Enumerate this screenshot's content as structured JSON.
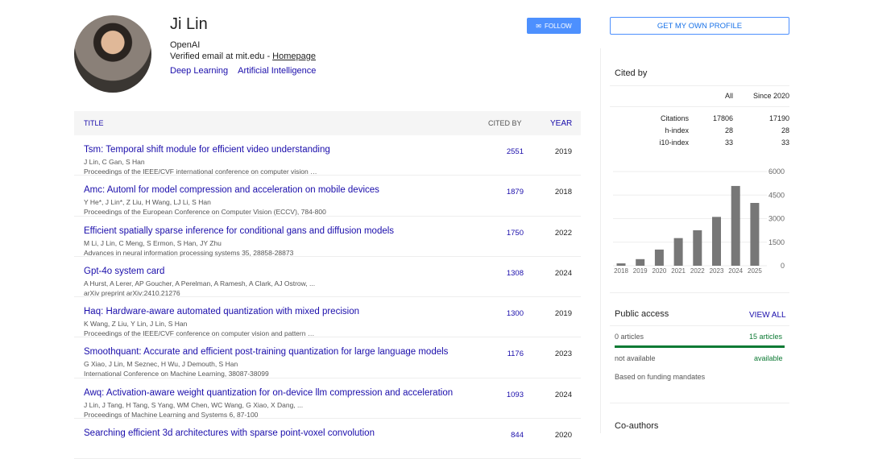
{
  "profile": {
    "name": "Ji Lin",
    "affiliation": "OpenAI",
    "email": "Verified email at mit.edu - ",
    "homepage": "Homepage",
    "interests": [
      "Deep Learning",
      "Artificial Intelligence"
    ],
    "follow": "FOLLOW",
    "get_profile": "GET MY OWN PROFILE"
  },
  "table": {
    "headers": {
      "title": "TITLE",
      "cited_by": "CITED BY",
      "year": "YEAR"
    },
    "rows": [
      {
        "title": "Tsm: Temporal shift module for efficient video understanding",
        "authors": "J Lin, C Gan, S Han",
        "venue": "Proceedings of the IEEE/CVF international conference on computer vision …",
        "cited": "2551",
        "year": "2019"
      },
      {
        "title": "Amc: Automl for model compression and acceleration on mobile devices",
        "authors": "Y He*, J Lin*, Z Liu, H Wang, LJ Li, S Han",
        "venue": "Proceedings of the European Conference on Computer Vision (ECCV), 784-800",
        "cited": "1879",
        "year": "2018"
      },
      {
        "title": "Efficient spatially sparse inference for conditional gans and diffusion models",
        "authors": "M Li, J Lin, C Meng, S Ermon, S Han, JY Zhu",
        "venue": "Advances in neural information processing systems 35, 28858-28873",
        "cited": "1750",
        "year": "2022"
      },
      {
        "title": "Gpt-4o system card",
        "authors": "A Hurst, A Lerer, AP Goucher, A Perelman, A Ramesh, A Clark, AJ Ostrow, ...",
        "venue": "arXiv preprint arXiv:2410.21276",
        "cited": "1308",
        "year": "2024"
      },
      {
        "title": "Haq: Hardware-aware automated quantization with mixed precision",
        "authors": "K Wang, Z Liu, Y Lin, J Lin, S Han",
        "venue": "Proceedings of the IEEE/CVF conference on computer vision and pattern …",
        "cited": "1300",
        "year": "2019"
      },
      {
        "title": "Smoothquant: Accurate and efficient post-training quantization for large language models",
        "authors": "G Xiao, J Lin, M Seznec, H Wu, J Demouth, S Han",
        "venue": "International Conference on Machine Learning, 38087-38099",
        "cited": "1176",
        "year": "2023"
      },
      {
        "title": "Awq: Activation-aware weight quantization for on-device llm compression and acceleration",
        "authors": "J Lin, J Tang, H Tang, S Yang, WM Chen, WC Wang, G Xiao, X Dang, ...",
        "venue": "Proceedings of Machine Learning and Systems 6, 87-100",
        "cited": "1093",
        "year": "2024"
      },
      {
        "title": "Searching efficient 3d architectures with sparse point-voxel convolution",
        "authors": "",
        "venue": "",
        "cited": "844",
        "year": "2020"
      }
    ]
  },
  "cited_by": {
    "title": "Cited by",
    "cols": [
      "All",
      "Since 2020"
    ],
    "rows": [
      {
        "label": "Citations",
        "all": "17806",
        "since": "17190"
      },
      {
        "label": "h-index",
        "all": "28",
        "since": "28"
      },
      {
        "label": "i10-index",
        "all": "33",
        "since": "33"
      }
    ]
  },
  "chart_data": {
    "type": "bar",
    "categories": [
      "2018",
      "2019",
      "2020",
      "2021",
      "2022",
      "2023",
      "2024",
      "2025"
    ],
    "values": [
      150,
      420,
      1030,
      1760,
      2260,
      3110,
      5080,
      4000
    ],
    "ylim": [
      0,
      6000
    ],
    "yticks": [
      "0",
      "1500",
      "3000",
      "4500",
      "6000"
    ],
    "grid": true,
    "color": "#777777"
  },
  "public_access": {
    "title": "Public access",
    "view_all": "VIEW ALL",
    "left_count": "0 articles",
    "right_count": "15 articles",
    "left_label": "not available",
    "right_label": "available",
    "note": "Based on funding mandates",
    "fraction_available": 1.0,
    "bar_color": "#0d7a34"
  },
  "coauthors": {
    "title": "Co-authors"
  }
}
